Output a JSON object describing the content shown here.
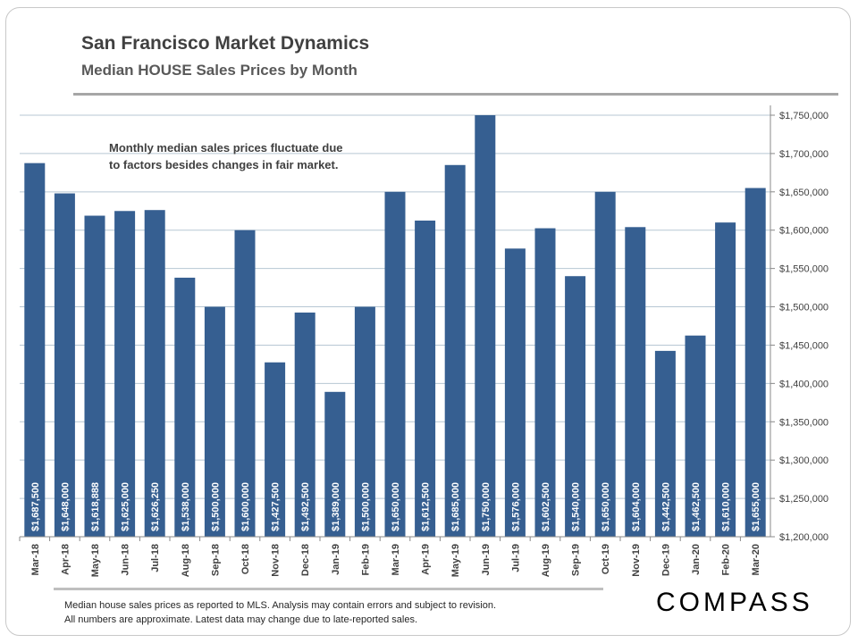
{
  "header": {
    "title": "San Francisco Market Dynamics",
    "subtitle": "Median HOUSE Sales Prices by Month"
  },
  "annotation": [
    "Monthly median sales prices fluctuate due",
    "to factors besides changes in fair market."
  ],
  "footer": {
    "lines": [
      "Median house sales prices as reported to MLS.  Analysis may contain errors and subject to revision.",
      "All numbers are approximate. Latest data may change due to late-reported sales."
    ],
    "logo": "COMPASS"
  },
  "colors": {
    "bar": "#365f91",
    "grid": "#b7c7d3",
    "axis_text": "#404040"
  },
  "chart_data": {
    "type": "bar",
    "title": "",
    "xlabel": "",
    "ylabel": "",
    "ylim": [
      1200000,
      1750000
    ],
    "y_axis_position": "right",
    "grid": true,
    "yticks": [
      1200000,
      1250000,
      1300000,
      1350000,
      1400000,
      1450000,
      1500000,
      1550000,
      1600000,
      1650000,
      1700000,
      1750000
    ],
    "ytick_labels": [
      "$1,200,000",
      "$1,250,000",
      "$1,300,000",
      "$1,350,000",
      "$1,400,000",
      "$1,450,000",
      "$1,500,000",
      "$1,550,000",
      "$1,600,000",
      "$1,650,000",
      "$1,700,000",
      "$1,750,000"
    ],
    "categories": [
      "Mar-18",
      "Apr-18",
      "May-18",
      "Jun-18",
      "Jul-18",
      "Aug-18",
      "Sep-18",
      "Oct-18",
      "Nov-18",
      "Dec-18",
      "Jan-19",
      "Feb-19",
      "Mar-19",
      "Apr-19",
      "May-19",
      "Jun-19",
      "Jul-19",
      "Aug-19",
      "Sep-19",
      "Oct-19",
      "Nov-19",
      "Dec-19",
      "Jan-20",
      "Feb-20",
      "Mar-20"
    ],
    "values": [
      1687500,
      1648000,
      1618888,
      1625000,
      1626250,
      1538000,
      1500000,
      1600000,
      1427500,
      1492500,
      1389000,
      1500000,
      1650000,
      1612500,
      1685000,
      1750000,
      1576000,
      1602500,
      1540000,
      1650000,
      1604000,
      1442500,
      1462500,
      1610000,
      1655000
    ],
    "data_labels": [
      "$1,687,500",
      "$1,648,000",
      "$1,618,888",
      "$1,625,000",
      "$1,626,250",
      "$1,538,000",
      "$1,500,000",
      "$1,600,000",
      "$1,427,500",
      "$1,492,500",
      "$1,389,000",
      "$1,500,000",
      "$1,650,000",
      "$1,612,500",
      "$1,685,000",
      "$1,750,000",
      "$1,576,000",
      "$1,602,500",
      "$1,540,000",
      "$1,650,000",
      "$1,604,000",
      "$1,442,500",
      "$1,462,500",
      "$1,610,000",
      "$1,655,000"
    ]
  }
}
